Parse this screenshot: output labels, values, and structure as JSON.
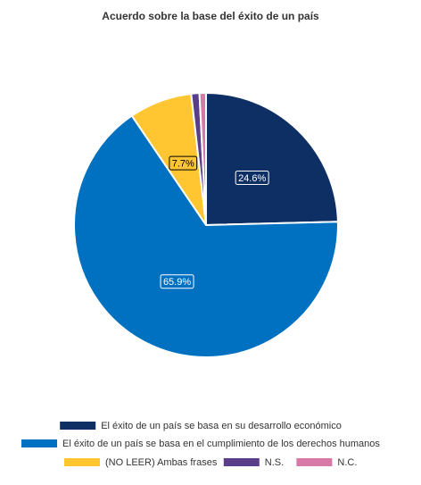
{
  "chart_data": {
    "type": "pie",
    "title": "Acuerdo sobre la base del éxito de un país",
    "slices": [
      {
        "label": "El éxito de un país se basa en su desarrollo económico",
        "value": 24.6,
        "data_label": "24.6%",
        "color": "#0d2f63",
        "label_color": "#ffffff",
        "label_border": "#ffffff"
      },
      {
        "label": "El éxito de un país se basa en el cumplimiento de los derechos humanos",
        "value": 65.9,
        "data_label": "65.9%",
        "color": "#0070c0",
        "label_color": "#ffffff",
        "label_border": "#ffffff"
      },
      {
        "label": "(NO LEER) Ambas frases",
        "value": 7.7,
        "data_label": "7.7%",
        "color": "#ffc632",
        "label_color": "#000000",
        "label_border": "#000000"
      },
      {
        "label": "N.S.",
        "value": 1.0,
        "data_label": "",
        "color": "#5a3e8a",
        "label_color": "#ffffff",
        "label_border": "#ffffff"
      },
      {
        "label": "N.C.",
        "value": 0.8,
        "data_label": "",
        "color": "#d87aa8",
        "label_color": "#ffffff",
        "label_border": "#ffffff"
      }
    ],
    "legend_position": "bottom"
  }
}
